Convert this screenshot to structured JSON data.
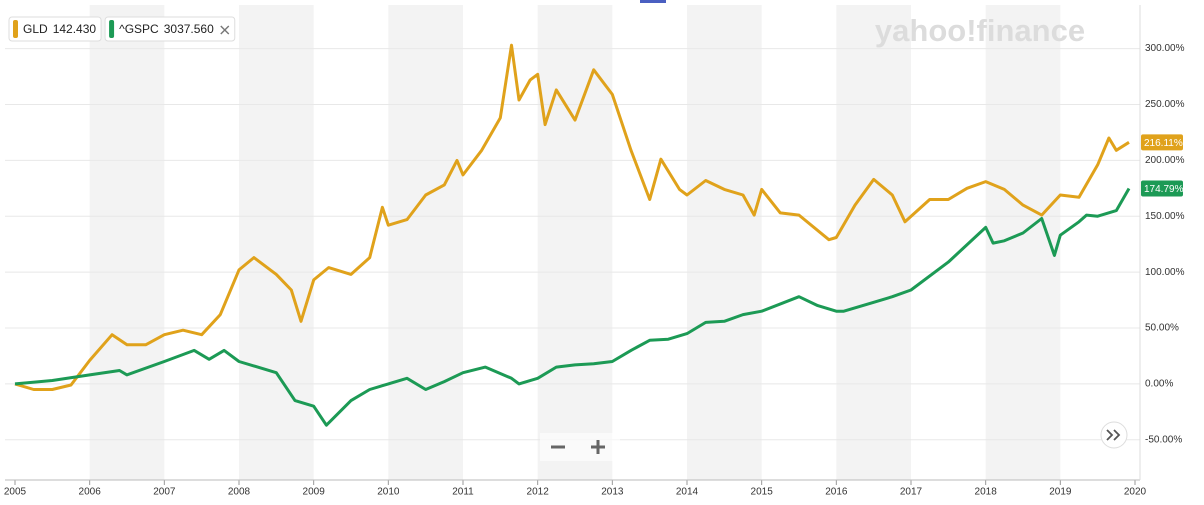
{
  "chart_data": {
    "type": "line",
    "watermark": "yahoo!finance",
    "xlim": [
      2004.866,
      2020.067
    ],
    "xticks": [
      2005,
      2006,
      2007,
      2008,
      2009,
      2010,
      2011,
      2012,
      2013,
      2014,
      2015,
      2016,
      2017,
      2018,
      2019,
      2020
    ],
    "ylim": [
      -86,
      339
    ],
    "yticks": [
      {
        "value": -50,
        "label": "-50.00%"
      },
      {
        "value": 0,
        "label": "0.00%"
      },
      {
        "value": 50,
        "label": "50.00%"
      },
      {
        "value": 100,
        "label": "100.00%"
      },
      {
        "value": 150,
        "label": "150.00%"
      },
      {
        "value": 200,
        "label": "200.00%"
      },
      {
        "value": 250,
        "label": "250.00%"
      },
      {
        "value": 300,
        "label": "300.00%"
      }
    ],
    "grid": true,
    "series": [
      {
        "name": "GLD",
        "legend_value": "142.430",
        "color": "#e0a21b",
        "end_label": "216.11%",
        "x": [
          2005.0,
          2005.25,
          2005.5,
          2005.75,
          2006.0,
          2006.3,
          2006.5,
          2006.75,
          2007.0,
          2007.25,
          2007.5,
          2007.75,
          2008.0,
          2008.2,
          2008.5,
          2008.7,
          2008.83,
          2009.0,
          2009.2,
          2009.5,
          2009.75,
          2009.92,
          2010.0,
          2010.25,
          2010.5,
          2010.75,
          2010.92,
          2011.0,
          2011.25,
          2011.5,
          2011.65,
          2011.75,
          2011.9,
          2012.0,
          2012.1,
          2012.25,
          2012.5,
          2012.75,
          2013.0,
          2013.25,
          2013.5,
          2013.65,
          2013.9,
          2014.0,
          2014.25,
          2014.5,
          2014.75,
          2014.9,
          2015.0,
          2015.25,
          2015.5,
          2015.9,
          2016.0,
          2016.25,
          2016.5,
          2016.75,
          2016.92,
          2017.25,
          2017.5,
          2017.75,
          2018.0,
          2018.25,
          2018.5,
          2018.75,
          2019.0,
          2019.25,
          2019.5,
          2019.65,
          2019.75,
          2019.92
        ],
        "values": [
          0,
          -5,
          -5,
          -1,
          21,
          44,
          35,
          35,
          44,
          48,
          44,
          62,
          102,
          113,
          98,
          84,
          56,
          93,
          104,
          98,
          113,
          158,
          142,
          147,
          169,
          178,
          200,
          187,
          209,
          238,
          303,
          254,
          272,
          277,
          232,
          263,
          236,
          281,
          259,
          209,
          165,
          201,
          174,
          169,
          182,
          174,
          169,
          151,
          174,
          153,
          151,
          129,
          131,
          160,
          183,
          169,
          145,
          165,
          165,
          175,
          181,
          174,
          160,
          151,
          169,
          167,
          196,
          220,
          209,
          216.11
        ]
      },
      {
        "name": "^GSPC",
        "legend_value": "3037.560",
        "color": "#1c9a55",
        "end_label": "174.79%",
        "x": [
          2005.0,
          2005.5,
          2006.0,
          2006.4,
          2006.5,
          2007.0,
          2007.4,
          2007.6,
          2007.8,
          2008.0,
          2008.25,
          2008.5,
          2008.75,
          2009.0,
          2009.17,
          2009.5,
          2009.75,
          2010.0,
          2010.25,
          2010.5,
          2010.75,
          2011.0,
          2011.3,
          2011.65,
          2011.75,
          2012.0,
          2012.25,
          2012.5,
          2012.75,
          2013.0,
          2013.25,
          2013.5,
          2013.75,
          2014.0,
          2014.25,
          2014.5,
          2014.75,
          2015.0,
          2015.5,
          2015.75,
          2016.0,
          2016.1,
          2016.5,
          2016.75,
          2017.0,
          2017.5,
          2018.0,
          2018.1,
          2018.25,
          2018.5,
          2018.75,
          2018.92,
          2019.0,
          2019.25,
          2019.35,
          2019.5,
          2019.75,
          2019.92
        ],
        "values": [
          0,
          3,
          8,
          12,
          8,
          20,
          30,
          22,
          30,
          20,
          15,
          10,
          -15,
          -20,
          -37,
          -15,
          -5,
          0,
          5,
          -5,
          2,
          10,
          15,
          5,
          0,
          5,
          15,
          17,
          18,
          20,
          30,
          39,
          40,
          45,
          55,
          56,
          62,
          65,
          78,
          70,
          65,
          65,
          73,
          78,
          84,
          109,
          140,
          126,
          128,
          135,
          148,
          115,
          133,
          145,
          151,
          150,
          155,
          174.79
        ]
      }
    ]
  }
}
